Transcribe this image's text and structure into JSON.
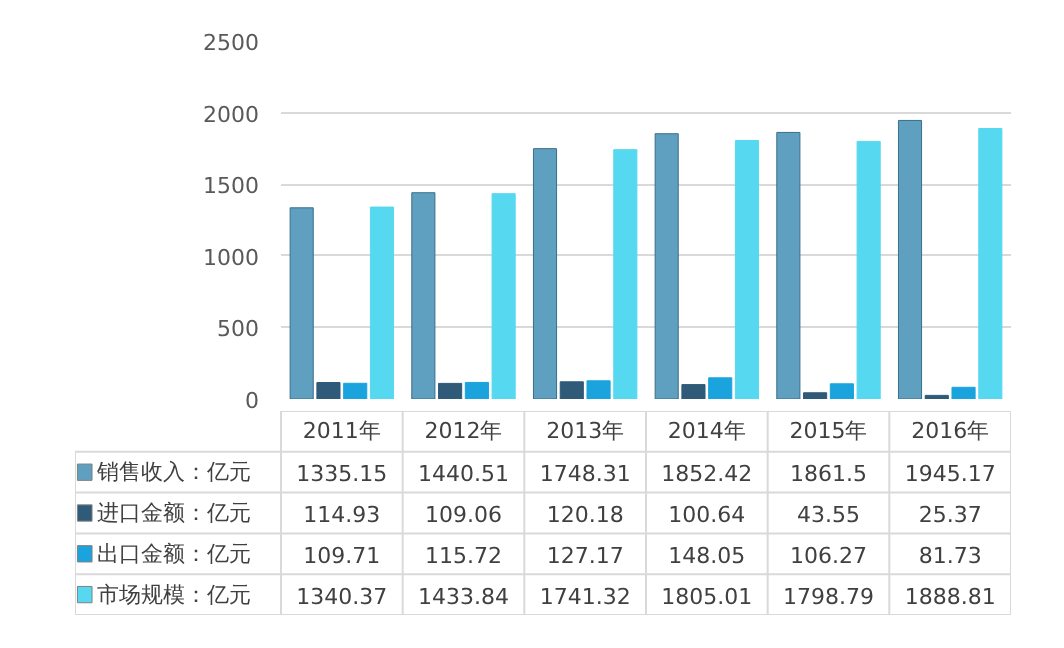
{
  "chart_data": {
    "type": "bar",
    "categories": [
      "2011年",
      "2012年",
      "2013年",
      "2014年",
      "2015年",
      "2016年"
    ],
    "series": [
      {
        "name": "销售收入：亿元",
        "color": "#5f9fc0",
        "values": [
          1335.15,
          1440.51,
          1748.31,
          1852.42,
          1861.5,
          1945.17
        ]
      },
      {
        "name": "进口金额：亿元",
        "color": "#2f5a78",
        "values": [
          114.93,
          109.06,
          120.18,
          100.64,
          43.55,
          25.37
        ]
      },
      {
        "name": "出口金额：亿元",
        "color": "#1aa3dc",
        "values": [
          109.71,
          115.72,
          127.17,
          148.05,
          106.27,
          81.73
        ]
      },
      {
        "name": "市场规模：亿元",
        "color": "#56d8f0",
        "values": [
          1340.37,
          1433.84,
          1741.32,
          1805.01,
          1798.79,
          1888.81
        ]
      }
    ],
    "ylim": [
      0,
      2500
    ],
    "yticks": [
      0,
      500,
      1000,
      1500,
      2000,
      2500
    ],
    "grid": "y",
    "legend": "bottom",
    "data_labels": true
  }
}
